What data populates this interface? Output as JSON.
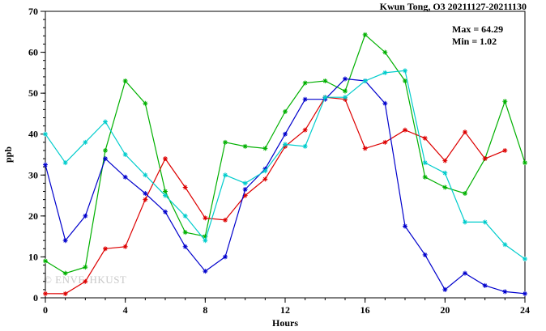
{
  "header": {
    "title": "Kwun Tong, O3 20211127-20211130"
  },
  "annotation": {
    "max_label": "Max = 64.29",
    "min_label": "Min = 1.02"
  },
  "watermark": "© ENVF, HKUST",
  "chart_data": {
    "type": "line",
    "title": "Kwun Tong, O3 20211127-20211130",
    "xlabel": "Hours",
    "ylabel": "ppb",
    "xlim": [
      0,
      24
    ],
    "ylim": [
      0,
      70
    ],
    "x_major_ticks": [
      0,
      4,
      8,
      12,
      16,
      20,
      24
    ],
    "x_minor_step": 1,
    "y_major_ticks": [
      0,
      10,
      20,
      30,
      40,
      50,
      60,
      70
    ],
    "y_minor_step": 2,
    "grid": false,
    "legend": false,
    "marker": "asterisk",
    "frame_color": "#000000",
    "x": [
      0,
      1,
      2,
      3,
      4,
      5,
      6,
      7,
      8,
      9,
      10,
      11,
      12,
      13,
      14,
      15,
      16,
      17,
      18,
      19,
      20,
      21,
      22,
      23,
      24
    ],
    "series": [
      {
        "name": "green",
        "color": "#00b000",
        "values": [
          9,
          6,
          7.5,
          36,
          53,
          47.5,
          26,
          16,
          15,
          38,
          37,
          36.5,
          45.5,
          52.5,
          53,
          50.5,
          64.29,
          60,
          53,
          29.5,
          27,
          25.5,
          34,
          48,
          33
        ]
      },
      {
        "name": "red",
        "color": "#dd0000",
        "values": [
          1.02,
          1,
          4,
          12,
          12.5,
          24,
          34,
          27,
          19.5,
          19,
          25,
          29,
          37,
          41,
          49,
          48.5,
          36.5,
          38,
          41,
          39,
          33.5,
          40.5,
          34,
          36,
          null
        ]
      },
      {
        "name": "blue",
        "color": "#0000cc",
        "values": [
          32.5,
          14,
          20,
          34,
          29.5,
          25.5,
          21,
          12.5,
          6.5,
          10,
          26.5,
          31.5,
          40,
          48.5,
          48.5,
          53.5,
          53,
          47.5,
          17.5,
          10.5,
          2,
          6,
          3,
          1.5,
          1.02
        ]
      },
      {
        "name": "cyan",
        "color": "#00cccc",
        "values": [
          40,
          33,
          38,
          43,
          35,
          30,
          25,
          20,
          14,
          30,
          28,
          31,
          37.5,
          37,
          49,
          49,
          53,
          55,
          55.5,
          33,
          30.5,
          18.5,
          18.5,
          13,
          9.5
        ]
      }
    ],
    "stats": {
      "max": 64.29,
      "min": 1.02
    }
  }
}
